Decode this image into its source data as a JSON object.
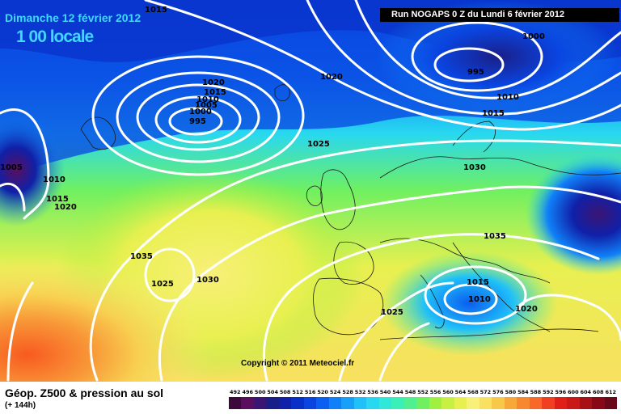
{
  "header": {
    "date_title": "Dimanche 12 février 2012",
    "time_title": "1 00 locale",
    "run_label": "Run NOGAPS 0 Z du Lundi 6 février 2012"
  },
  "footer": {
    "title": "Géop. Z500 & pression au sol",
    "subtitle": "(+ 144h)",
    "copyright": "Copyright © 2011 Meteociel.fr"
  },
  "scale": {
    "values": [
      "492",
      "496",
      "500",
      "504",
      "508",
      "512",
      "516",
      "520",
      "524",
      "528",
      "532",
      "536",
      "540",
      "544",
      "548",
      "552",
      "556",
      "560",
      "564",
      "568",
      "572",
      "576",
      "580",
      "584",
      "588",
      "592",
      "596",
      "600",
      "604",
      "608",
      "612"
    ],
    "colors": [
      "#3b0a3b",
      "#5a0f5e",
      "#3a1574",
      "#1a1f88",
      "#1020a8",
      "#0830c8",
      "#0a44e0",
      "#0a5ef0",
      "#1080f8",
      "#18a0f8",
      "#20c0f8",
      "#28d8f0",
      "#30e8d8",
      "#38f0b8",
      "#50f090",
      "#70f060",
      "#a0f040",
      "#c8f040",
      "#e8f050",
      "#f8f078",
      "#f8e060",
      "#f8c848",
      "#f8a838",
      "#f88830",
      "#f86828",
      "#f04020",
      "#e02018",
      "#c81818",
      "#a81018",
      "#880818",
      "#680818"
    ]
  },
  "isobars": [
    {
      "value": "1015",
      "label_id": "iso-1015-a"
    },
    {
      "value": "1000",
      "label_id": "iso-1000-a"
    },
    {
      "value": "995",
      "label_id": "iso-995-a"
    },
    {
      "value": "1010",
      "label_id": "iso-1010-a"
    },
    {
      "value": "1015",
      "label_id": "iso-1015-b"
    },
    {
      "value": "1020",
      "label_id": "iso-1020-a"
    },
    {
      "value": "1020",
      "label_id": "iso-1020-b"
    },
    {
      "value": "1015",
      "label_id": "iso-1015-c"
    },
    {
      "value": "1010",
      "label_id": "iso-1010-b"
    },
    {
      "value": "1005",
      "label_id": "iso-1005-a"
    },
    {
      "value": "1000",
      "label_id": "iso-1000-b"
    },
    {
      "value": "995",
      "label_id": "iso-995-b"
    },
    {
      "value": "1025",
      "label_id": "iso-1025-a"
    },
    {
      "value": "1030",
      "label_id": "iso-1030-a"
    },
    {
      "value": "1005",
      "label_id": "iso-1005-b"
    },
    {
      "value": "1010",
      "label_id": "iso-1010-c"
    },
    {
      "value": "1015",
      "label_id": "iso-1015-d"
    },
    {
      "value": "1020",
      "label_id": "iso-1020-c"
    },
    {
      "value": "1035",
      "label_id": "iso-1035-a"
    },
    {
      "value": "1035",
      "label_id": "iso-1035-b"
    },
    {
      "value": "1025",
      "label_id": "iso-1025-b"
    },
    {
      "value": "1030",
      "label_id": "iso-1030-b"
    },
    {
      "value": "1015",
      "label_id": "iso-1015-e"
    },
    {
      "value": "1010",
      "label_id": "iso-1010-d"
    },
    {
      "value": "1020",
      "label_id": "iso-1020-d"
    },
    {
      "value": "1025",
      "label_id": "iso-1025-c"
    }
  ]
}
